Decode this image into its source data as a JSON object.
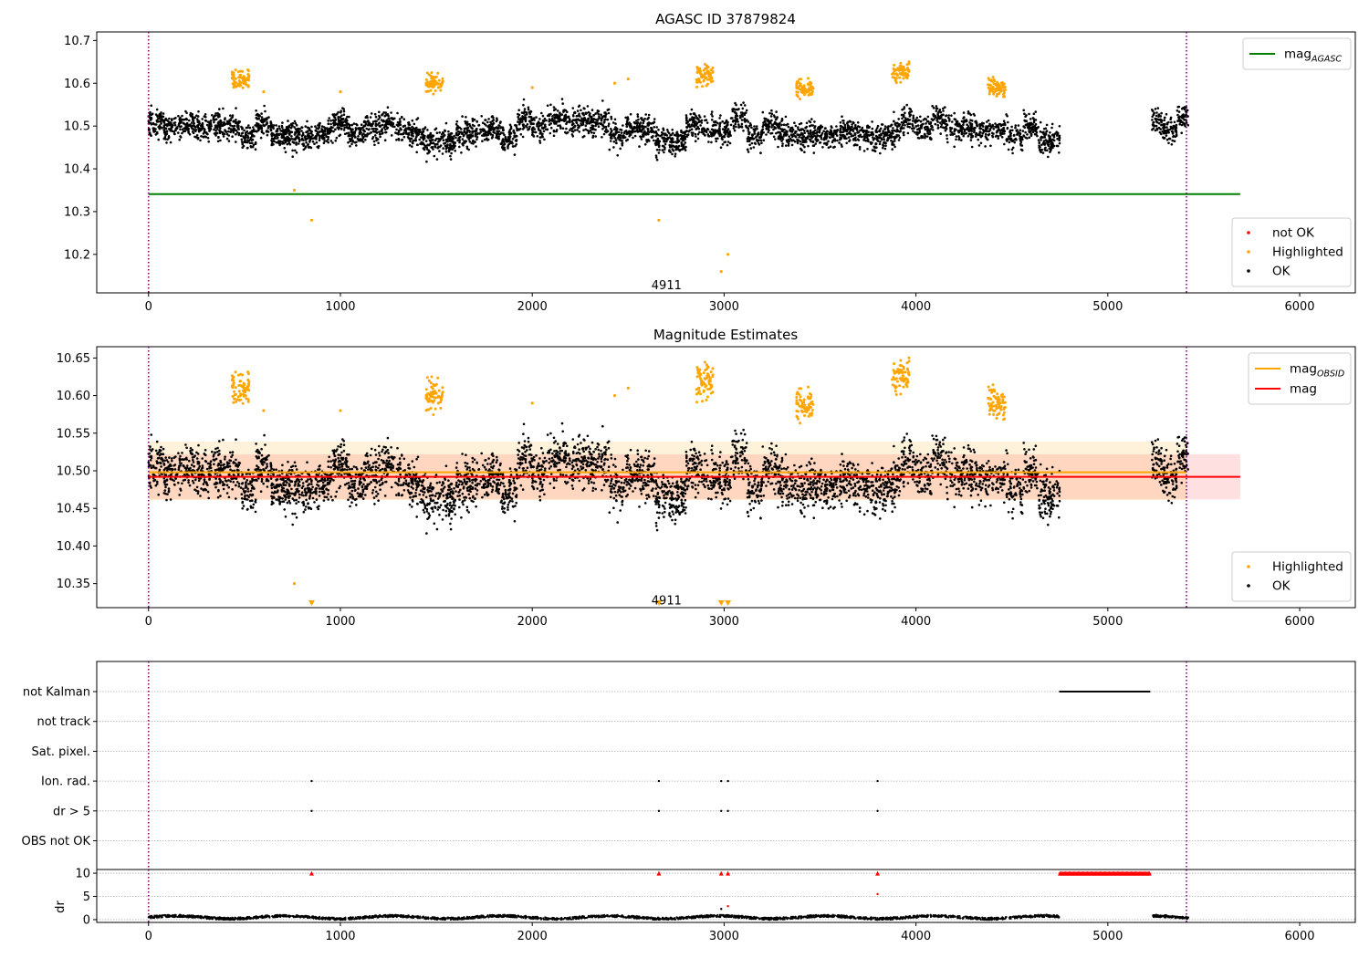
{
  "chart_data": [
    {
      "type": "scatter",
      "title": "AGASC ID 37879824",
      "xlim": [
        -270,
        6290
      ],
      "ylim": [
        10.11,
        10.72
      ],
      "x_ticks": [
        0,
        1000,
        2000,
        3000,
        4000,
        5000,
        6000
      ],
      "y_ticks": [
        "10.2",
        "10.3",
        "10.4",
        "10.5",
        "10.6",
        "10.7"
      ],
      "y_tick_values": [
        10.2,
        10.3,
        10.4,
        10.5,
        10.6,
        10.7
      ],
      "vlines": [
        0,
        5410
      ],
      "hlines": [
        {
          "label": "mag",
          "sub": "AGASC",
          "y": 10.341,
          "x": [
            0,
            5690
          ],
          "color": "#008000"
        }
      ],
      "annotation": {
        "text": "4911",
        "x": 2700,
        "y": 10.127
      },
      "legend_lines": [
        {
          "label": "mag",
          "sub": "AGASC",
          "color": "#008000"
        }
      ],
      "legend_markers": [
        {
          "label": "not OK",
          "color": "#ff0000"
        },
        {
          "label": "Highlighted",
          "color": "#ffa500"
        },
        {
          "label": "OK",
          "color": "#000000"
        }
      ],
      "series": [
        {
          "name": "OK",
          "color": "#000000",
          "segments": [
            [
              0,
              4750,
              10.49,
              0.022
            ],
            [
              5230,
              5420,
              10.51,
              0.02
            ]
          ]
        },
        {
          "name": "Highlighted",
          "color": "#ffa500",
          "clusters": [
            [
              480,
              10.61
            ],
            [
              1490,
              10.6
            ],
            [
              2900,
              10.62
            ],
            [
              3420,
              10.59
            ],
            [
              3920,
              10.625
            ],
            [
              4420,
              10.59
            ]
          ],
          "points": [
            [
              760,
              10.35
            ],
            [
              850,
              10.28
            ],
            [
              2660,
              10.28
            ],
            [
              2985,
              10.16
            ],
            [
              3020,
              10.2
            ],
            [
              2000,
              10.59
            ],
            [
              2430,
              10.6
            ],
            [
              2500,
              10.61
            ],
            [
              1000,
              10.58
            ],
            [
              600,
              10.58
            ]
          ]
        }
      ]
    },
    {
      "type": "scatter",
      "title": "Magnitude Estimates",
      "xlim": [
        -270,
        6290
      ],
      "ylim": [
        10.318,
        10.665
      ],
      "x_ticks": [
        0,
        1000,
        2000,
        3000,
        4000,
        5000,
        6000
      ],
      "y_ticks": [
        "10.35",
        "10.40",
        "10.45",
        "10.50",
        "10.55",
        "10.60",
        "10.65"
      ],
      "y_tick_values": [
        10.35,
        10.4,
        10.45,
        10.5,
        10.55,
        10.6,
        10.65
      ],
      "vlines": [
        0,
        5410
      ],
      "bands": [
        {
          "y": [
            10.462,
            10.522
          ],
          "x": [
            0,
            5690
          ],
          "color": "#ff0000",
          "opacity": 0.12
        },
        {
          "y": [
            10.461,
            10.539
          ],
          "x": [
            0,
            5410
          ],
          "color": "#ffa500",
          "opacity": 0.14
        }
      ],
      "hlines": [
        {
          "label": "mag",
          "sub": "OBSID",
          "y": 10.498,
          "x": [
            0,
            5410
          ],
          "color": "#ffa500"
        },
        {
          "label": "mag",
          "sub": "",
          "y": 10.492,
          "x": [
            0,
            5690
          ],
          "color": "#ff0000"
        }
      ],
      "annotation": {
        "text": "4911",
        "x": 2700,
        "y": 10.327
      },
      "clipped_markers": [
        850,
        2660,
        2985,
        3020
      ],
      "legend_lines": [
        {
          "label": "mag",
          "sub": "OBSID",
          "color": "#ffa500"
        },
        {
          "label": "mag",
          "sub": "",
          "color": "#ff0000"
        }
      ],
      "legend_markers": [
        {
          "label": "Highlighted",
          "color": "#ffa500"
        },
        {
          "label": "OK",
          "color": "#000000"
        }
      ],
      "series": [
        {
          "name": "OK",
          "color": "#000000",
          "segments": [
            [
              0,
              4750,
              10.49,
              0.022
            ],
            [
              5230,
              5420,
              10.51,
              0.02
            ]
          ]
        },
        {
          "name": "Highlighted",
          "color": "#ffa500",
          "clusters": [
            [
              480,
              10.61
            ],
            [
              1490,
              10.6
            ],
            [
              2900,
              10.62
            ],
            [
              3420,
              10.59
            ],
            [
              3920,
              10.625
            ],
            [
              4420,
              10.59
            ]
          ],
          "points": [
            [
              760,
              10.35
            ],
            [
              2000,
              10.59
            ],
            [
              2430,
              10.6
            ],
            [
              2500,
              10.61
            ],
            [
              1000,
              10.58
            ],
            [
              600,
              10.58
            ]
          ]
        }
      ]
    },
    {
      "type": "scatter",
      "title": "",
      "xlim": [
        -270,
        6290
      ],
      "x_ticks": [
        0,
        1000,
        2000,
        3000,
        4000,
        5000,
        6000
      ],
      "vlines": [
        0,
        5410
      ],
      "flag_rows": [
        "not Kalman",
        "not track",
        "Sat. pixel.",
        "Ion. rad.",
        "dr > 5",
        "OBS not OK"
      ],
      "flag_data": [
        {
          "row": "not Kalman",
          "x_range": [
            4750,
            5220
          ]
        },
        {
          "row": "Ion. rad.",
          "x": [
            850,
            2660,
            2985,
            3020,
            3800
          ]
        },
        {
          "row": "dr > 5",
          "x": [
            850,
            2660,
            2985,
            3020,
            3800
          ]
        }
      ],
      "dr": {
        "ylabel": "dr",
        "y_ticks": [
          "0",
          "5",
          "10"
        ],
        "y_tick_values": [
          0,
          5,
          10
        ],
        "ylim": [
          -0.6,
          10.8
        ],
        "clipped_x": [
          850,
          2660,
          2985,
          3020,
          3800
        ],
        "clipped_range": [
          4750,
          5220
        ],
        "points": [
          [
            2985,
            2.3
          ],
          [
            3020,
            2.9
          ],
          [
            3800,
            5.5
          ],
          [
            5250,
            1.0
          ]
        ]
      }
    }
  ]
}
